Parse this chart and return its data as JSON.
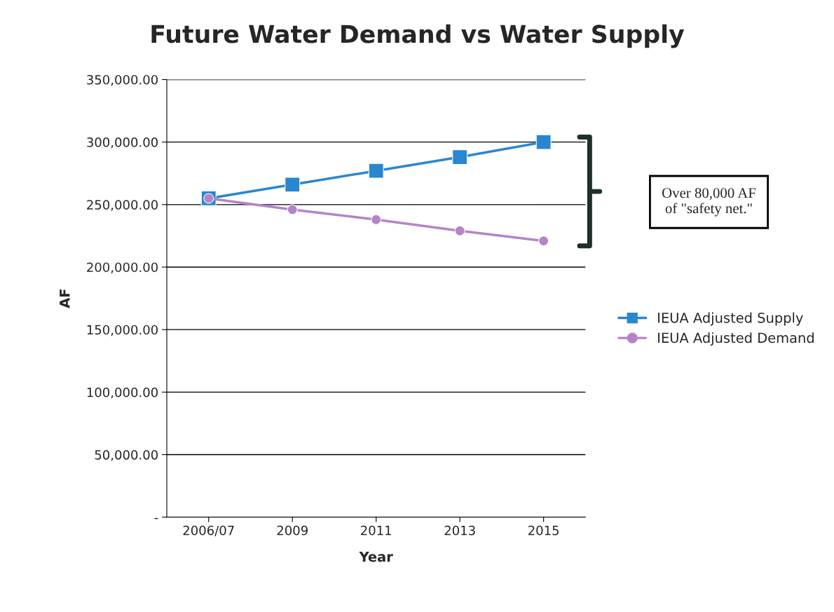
{
  "chart_data": {
    "type": "line",
    "title": "Future Water Demand vs Water Supply",
    "xlabel": "Year",
    "ylabel": "AF",
    "categories": [
      "2006/07",
      "2009",
      "2011",
      "2013",
      "2015"
    ],
    "series": [
      {
        "name": "IEUA Adjusted Supply",
        "color": "#2a86cf",
        "marker": "square",
        "values": [
          255000,
          266000,
          277000,
          288000,
          300000
        ]
      },
      {
        "name": "IEUA Adjusted Demand",
        "color": "#b584c8",
        "marker": "circle",
        "values": [
          255000,
          246000,
          238000,
          229000,
          221000
        ]
      }
    ],
    "ylim": [
      0,
      350000
    ],
    "yticks": [
      {
        "value": 0,
        "label": "-"
      },
      {
        "value": 50000,
        "label": "50,000.00"
      },
      {
        "value": 100000,
        "label": "100,000.00"
      },
      {
        "value": 150000,
        "label": "150,000.00"
      },
      {
        "value": 200000,
        "label": "200,000.00"
      },
      {
        "value": 250000,
        "label": "250,000.00"
      },
      {
        "value": 300000,
        "label": "300,000.00"
      },
      {
        "value": 350000,
        "label": "350,000.00"
      }
    ],
    "grid": "y",
    "legend": "right",
    "line_style": "solid",
    "annotations": [
      "Over 80,000 AF\nof \"safety net.\""
    ]
  }
}
